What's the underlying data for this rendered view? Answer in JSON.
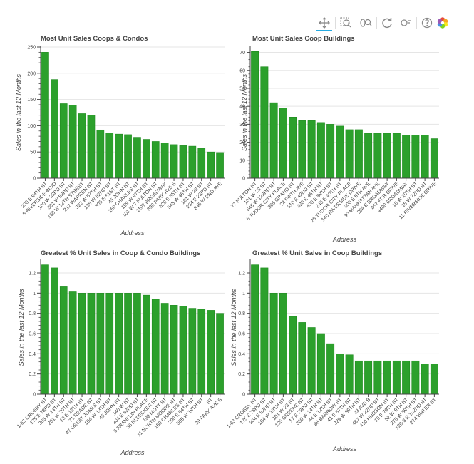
{
  "toolbar": {
    "tools": [
      {
        "name": "pan-tool",
        "icon": "pan-icon",
        "active": true
      },
      {
        "name": "box-zoom-tool",
        "icon": "box-zoom-icon",
        "active": false
      },
      {
        "name": "wheel-zoom-tool",
        "icon": "wheel-zoom-icon",
        "active": false
      },
      {
        "name": "reset-tool",
        "icon": "reset-icon",
        "active": false
      },
      {
        "name": "hover-tool",
        "icon": "hover-icon",
        "active": false
      },
      {
        "name": "help-tool",
        "icon": "help-icon",
        "active": false
      },
      {
        "name": "bokeh-logo",
        "icon": "bokeh-logo-icon",
        "active": false
      }
    ]
  },
  "colors": {
    "bar": "#2ca02c",
    "bar_stroke": "#1f8a1f",
    "axis": "#444444",
    "grid": "#e5e5e5"
  },
  "chart_data": [
    {
      "type": "bar",
      "title": "Most Unit Sales Coops & Condos",
      "xlabel": "Address",
      "ylabel": "Sales in the last 12 Months",
      "ylim": [
        0,
        250
      ],
      "yticks": [
        0,
        50,
        100,
        150,
        200,
        250
      ],
      "yticklabels": [
        "0",
        "50",
        "100",
        "150",
        "200",
        "250"
      ],
      "grid": true,
      "categories": [
        "200 E 94TH ST",
        "5 RIVERSIDE BLVD",
        "100 W 33RD ST",
        "301 W 53RD ST",
        "160 W 12TH STREET",
        "212 WARREN ST",
        "322 W 57TH ST",
        "135 W 52ND ST",
        "305 E 51ST ST",
        "45 JOHN ST",
        "150 CHARLES ST",
        "199 W 97TH ST",
        "101 W 7 FULTON ST",
        "1107 BROADWAY",
        "398 PARK AVE S",
        "320 E 35TH ST",
        "545 W 46TH ST",
        "101 W 23 ST",
        "234 E 23RD ST",
        "845 W END AVE"
      ],
      "values": [
        240,
        188,
        142,
        139,
        123,
        120,
        92,
        86,
        84,
        83,
        78,
        74,
        70,
        67,
        64,
        62,
        61,
        57,
        50,
        49
      ]
    },
    {
      "type": "bar",
      "title": "Most Unit Sales Coop Buildings",
      "xlabel": "Address",
      "ylabel": "Sales in the last 12 Months",
      "ylim": [
        0,
        73
      ],
      "yticks": [
        0,
        10,
        20,
        30,
        40,
        50,
        60,
        70
      ],
      "yticklabels": [
        "0",
        "10",
        "20",
        "30",
        "40",
        "50",
        "60",
        "70"
      ],
      "grid": true,
      "categories": [
        "77 FULTON ST",
        "101 W 23 ST",
        "645 W 123RD ST",
        "5 TUDOR CITY PLACE",
        "365 GRAND ST",
        "24 FIFTH AVE",
        "310 E 42ND ST",
        "320 E 46TH ST",
        "400 E 89TH ST",
        "245 E 40TH ST",
        "25 TUDOR CITY PLACE",
        "140 RIVERSIDE DRIVE",
        "300 E 5TH AVE",
        "30 MANHATTAN AVE",
        "204 E BROADWAY",
        "457 FDR DRIVE",
        "4480 BROADWAY",
        "10 W 10TH ST",
        "15 W 72ND ST",
        "11 RIVERSIDE DRIVE"
      ],
      "values": [
        70.5,
        62,
        42,
        39,
        34,
        32,
        32,
        31,
        30,
        29,
        27,
        27,
        25,
        25,
        25,
        25,
        24,
        24,
        24,
        22
      ]
    },
    {
      "type": "bar",
      "title": "Greatest % Unit Sales in Coop & Condo Buildings",
      "xlabel": "Address",
      "ylabel": "Sales in the last 12 Months",
      "ylim": [
        0,
        1.32
      ],
      "yticks": [
        0,
        0.2,
        0.4,
        0.6,
        0.8,
        1,
        1.2
      ],
      "yticklabels": [
        "0",
        "0.2",
        "0.4",
        "0.6",
        "0.8",
        "1",
        "1.2"
      ],
      "grid": true,
      "categories": [
        "1-63 CROSBY ST",
        "175 E 78RD ST",
        "303 W 14TH ST",
        "201 W 20TH ST",
        "18 E 12TH ST",
        "71 READE ST",
        "47 GREAT JONES ST",
        "104 W 13TH ST",
        "45 JOHN ST",
        "140 W ST",
        "304 E 62ND ST",
        "6 FRANKLIN PLACE",
        "36 BLEECKER ST",
        "199 MOTT ST",
        "11 NORTH MOORE ST",
        "150 CHARLES ST",
        "200 E 94TH ST",
        "505 W 19TH ST",
        "ST",
        "39 PARK AVE S"
      ],
      "values": [
        1.28,
        1.25,
        1.07,
        1.02,
        1.0,
        1.0,
        1.0,
        1.0,
        1.0,
        1.0,
        1.0,
        0.98,
        0.94,
        0.9,
        0.88,
        0.87,
        0.85,
        0.84,
        0.83,
        0.8
      ]
    },
    {
      "type": "bar",
      "title": "Greatest % Unit Sales in Coop Buildings",
      "xlabel": "Address",
      "ylabel": "Sales in the last 12 Months",
      "ylim": [
        0,
        1.32
      ],
      "yticks": [
        0,
        0.2,
        0.4,
        0.6,
        0.8,
        1,
        1.2
      ],
      "yticklabels": [
        "0",
        "0.2",
        "0.4",
        "0.6",
        "0.8",
        "1",
        "1.2"
      ],
      "grid": true,
      "categories": [
        "1-63 CROSBY ST",
        "175 E 78RD ST",
        "304 E 62ND ST",
        "104 W 13TH ST",
        "101 W 23 ST",
        "135 GREENE ST",
        "17 E 73RD ST",
        "360 W 14TH ST",
        "44 E 12TH ST",
        "88 BARROW ST",
        "41 E 57TH ST",
        "329 W 89TH ST",
        "93 AVE B",
        "467 W 22ND ST",
        "410 HUDSON ST",
        "19 E 79TH ST",
        "52 W 9TH ST",
        "278 W 89TH ST",
        "120-3 E 102ND ST",
        "274 WATER ST"
      ],
      "values": [
        1.28,
        1.25,
        1.0,
        1.0,
        0.77,
        0.71,
        0.66,
        0.6,
        0.5,
        0.4,
        0.39,
        0.33,
        0.33,
        0.33,
        0.33,
        0.33,
        0.33,
        0.33,
        0.3,
        0.3
      ]
    }
  ]
}
